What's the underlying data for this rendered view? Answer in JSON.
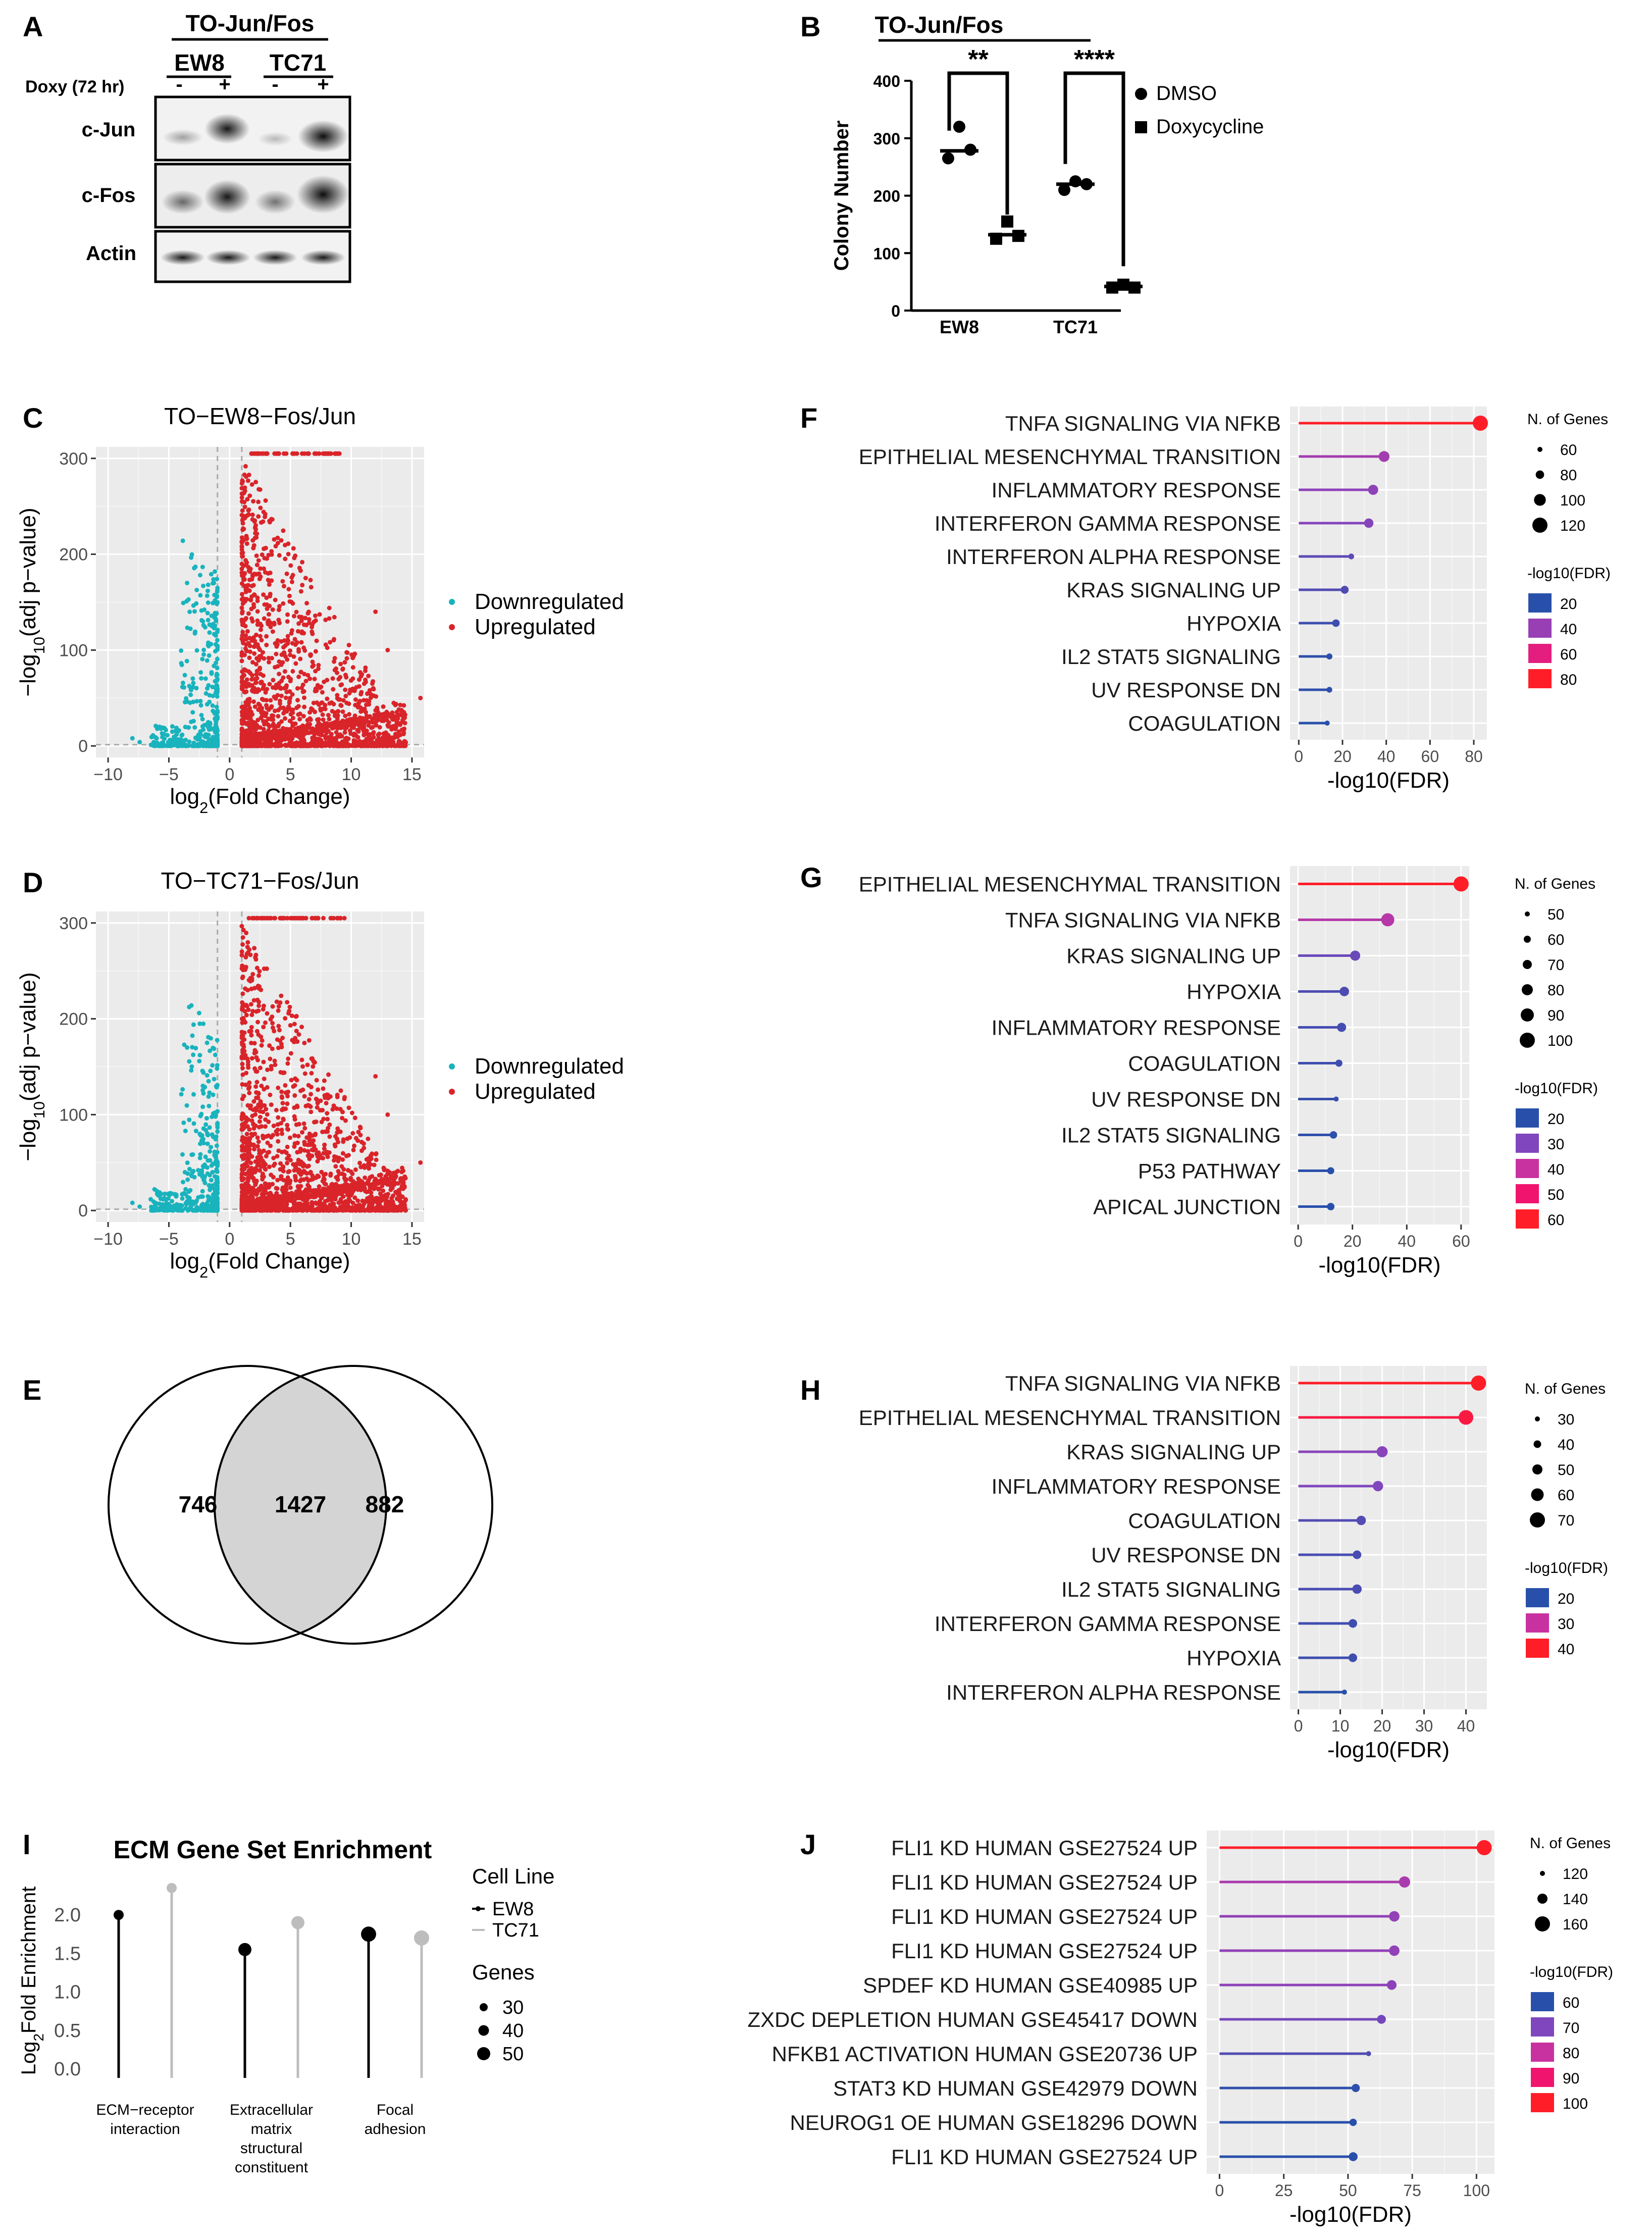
{
  "panel_labels": {
    "A": "A",
    "B": "B",
    "C": "C",
    "D": "D",
    "E": "E",
    "F": "F",
    "G": "G",
    "H": "H",
    "I": "I",
    "J": "J"
  },
  "blot": {
    "title": "TO-Jun/Fos",
    "treatment_label": "Doxy (72 hr)",
    "cell_lines": [
      "EW8",
      "TC71"
    ],
    "signs": [
      "-",
      "+",
      "-",
      "+"
    ],
    "rows": [
      "c-Jun",
      "c-Fos",
      "Actin"
    ]
  },
  "chart_data": [
    {
      "id": "B",
      "type": "scatter",
      "title": "TO-Jun/Fos",
      "ylabel": "Colony Number",
      "ylim": [
        0,
        400
      ],
      "yticks": [
        0,
        100,
        200,
        300,
        400
      ],
      "categories": [
        "EW8",
        "TC71"
      ],
      "legend": [
        "DMSO",
        "Doxycycline"
      ],
      "significance": [
        "**",
        "****"
      ],
      "series": [
        {
          "name": "DMSO",
          "points": [
            [
              0,
              320
            ],
            [
              0,
              265
            ],
            [
              0,
              280
            ],
            [
              1,
              225
            ],
            [
              1,
              210
            ],
            [
              1,
              220
            ]
          ],
          "mean": [
            278,
            220
          ]
        },
        {
          "name": "Doxycycline",
          "points": [
            [
              0,
              155
            ],
            [
              0,
              125
            ],
            [
              0,
              130
            ],
            [
              1,
              45
            ],
            [
              1,
              40
            ],
            [
              1,
              40
            ]
          ],
          "mean": [
            132,
            42
          ]
        }
      ]
    },
    {
      "id": "C",
      "type": "scatter",
      "title": "TO−EW8−Fos/Jun",
      "xlabel": "log2(Fold Change)",
      "ylabel": "−log10(adj p−value)",
      "xlim": [
        -11,
        16
      ],
      "ylim": [
        -12,
        312
      ],
      "xticks": [
        -10,
        -5,
        0,
        5,
        10,
        15
      ],
      "yticks": [
        0,
        100,
        200,
        300
      ],
      "legend": [
        "Downregulated",
        "Upregulated"
      ]
    },
    {
      "id": "D",
      "type": "scatter",
      "title": "TO−TC71−Fos/Jun",
      "xlabel": "log2(Fold Change)",
      "ylabel": "−log10(adj p−value)",
      "xlim": [
        -11,
        16
      ],
      "ylim": [
        -12,
        312
      ],
      "xticks": [
        -10,
        -5,
        0,
        5,
        10,
        15
      ],
      "yticks": [
        0,
        100,
        200,
        300
      ],
      "legend": [
        "Downregulated",
        "Upregulated"
      ]
    },
    {
      "id": "E",
      "type": "venn",
      "values": [
        746,
        1427,
        882
      ]
    },
    {
      "id": "F",
      "type": "lollipop",
      "xlabel": "-log10(FDR)",
      "xlim": [
        -4,
        86
      ],
      "xticks": [
        0,
        20,
        40,
        60,
        80
      ],
      "size_legend_title": "N. of Genes",
      "size_legend": [
        60,
        80,
        100,
        120
      ],
      "color_legend_title": "-log10(FDR)",
      "color_legend": [
        20,
        40,
        60,
        80
      ],
      "categories": [
        "TNFA SIGNALING VIA NFKB",
        "EPITHELIAL MESENCHYMAL TRANSITION",
        "INFLAMMATORY RESPONSE",
        "INTERFERON GAMMA RESPONSE",
        "INTERFERON ALPHA RESPONSE",
        "KRAS SIGNALING UP",
        "HYPOXIA",
        "IL2 STAT5 SIGNALING",
        "UV RESPONSE DN",
        "COAGULATION"
      ],
      "values": [
        83,
        39,
        34,
        32,
        24,
        21,
        17,
        14,
        14,
        13
      ],
      "genes": [
        125,
        95,
        90,
        85,
        60,
        75,
        72,
        62,
        60,
        55
      ]
    },
    {
      "id": "G",
      "type": "lollipop",
      "xlabel": "-log10(FDR)",
      "xlim": [
        -3,
        63
      ],
      "xticks": [
        0,
        20,
        40,
        60
      ],
      "size_legend_title": "N. of Genes",
      "size_legend": [
        50,
        60,
        70,
        80,
        90,
        100
      ],
      "color_legend_title": "-log10(FDR)",
      "color_legend": [
        20,
        30,
        40,
        50,
        60
      ],
      "categories": [
        "EPITHELIAL MESENCHYMAL TRANSITION",
        "TNFA SIGNALING VIA NFKB",
        "KRAS SIGNALING UP",
        "HYPOXIA",
        "INFLAMMATORY RESPONSE",
        "COAGULATION",
        "UV RESPONSE DN",
        "IL2 STAT5 SIGNALING",
        "P53 PATHWAY",
        "APICAL JUNCTION"
      ],
      "values": [
        60,
        33,
        21,
        17,
        16,
        15,
        14,
        13,
        12,
        12
      ],
      "genes": [
        100,
        90,
        75,
        72,
        70,
        60,
        50,
        62,
        60,
        62
      ]
    },
    {
      "id": "H",
      "type": "lollipop",
      "xlabel": "-log10(FDR)",
      "xlim": [
        -2,
        45
      ],
      "xticks": [
        0,
        10,
        20,
        30,
        40
      ],
      "size_legend_title": "N. of Genes",
      "size_legend": [
        30,
        40,
        50,
        60,
        70
      ],
      "color_legend_title": "-log10(FDR)",
      "color_legend": [
        20,
        30,
        40
      ],
      "categories": [
        "TNFA SIGNALING VIA NFKB",
        "EPITHELIAL MESENCHYMAL TRANSITION",
        "KRAS SIGNALING UP",
        "INFLAMMATORY RESPONSE",
        "COAGULATION",
        "UV RESPONSE DN",
        "IL2 STAT5 SIGNALING",
        "INTERFERON GAMMA RESPONSE",
        "HYPOXIA",
        "INTERFERON ALPHA RESPONSE"
      ],
      "values": [
        43,
        40,
        20,
        19,
        15,
        14,
        14,
        13,
        13,
        11
      ],
      "genes": [
        72,
        70,
        55,
        52,
        48,
        45,
        48,
        45,
        45,
        30
      ]
    },
    {
      "id": "I",
      "type": "lollipop",
      "title": "ECM Gene Set Enrichment",
      "ylabel": "Log2Fold Enrichment",
      "ylim": [
        0,
        2.4
      ],
      "yticks": [
        0.0,
        0.5,
        1.0,
        1.5,
        2.0
      ],
      "categories": [
        "ECM−receptor interaction",
        "Extracellular matrix structural constituent",
        "Focal adhesion"
      ],
      "legend_title": "Cell Line",
      "legend": [
        "EW8",
        "TC71"
      ],
      "size_legend_title": "Genes",
      "size_legend": [
        30,
        40,
        50
      ],
      "series": [
        {
          "name": "EW8",
          "values": [
            2.0,
            1.55,
            1.75
          ],
          "genes": [
            30,
            40,
            50
          ]
        },
        {
          "name": "TC71",
          "values": [
            2.35,
            1.9,
            1.7
          ],
          "genes": [
            30,
            40,
            50
          ]
        }
      ]
    },
    {
      "id": "J",
      "type": "lollipop",
      "xlabel": "-log10(FDR)",
      "xlim": [
        -5,
        107
      ],
      "xticks": [
        0,
        25,
        50,
        75,
        100
      ],
      "size_legend_title": "N. of Genes",
      "size_legend": [
        120,
        140,
        160
      ],
      "color_legend_title": "-log10(FDR)",
      "color_legend": [
        60,
        70,
        80,
        90,
        100
      ],
      "categories": [
        "FLI1 KD HUMAN GSE27524 UP",
        "FLI1 KD HUMAN GSE27524 UP",
        "FLI1 KD HUMAN GSE27524 UP",
        "FLI1 KD HUMAN GSE27524 UP",
        "SPDEF KD HUMAN GSE40985 UP",
        "ZXDC DEPLETION HUMAN GSE45417 DOWN",
        "NFKB1 ACTIVATION  HUMAN GSE20736 UP",
        "STAT3 KD HUMAN GSE42979 DOWN",
        "NEUROG1 OE HUMAN GSE18296 DOWN",
        "FLI1 KD HUMAN GSE27524 UP"
      ],
      "values": [
        103,
        72,
        68,
        68,
        67,
        63,
        58,
        53,
        52,
        52
      ],
      "genes": [
        165,
        140,
        135,
        135,
        130,
        125,
        100,
        120,
        115,
        125
      ]
    }
  ]
}
